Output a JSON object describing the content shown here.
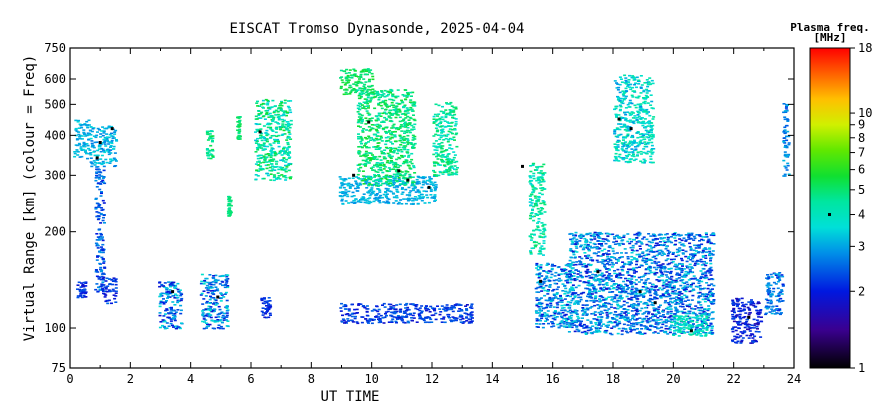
{
  "chart_data": {
    "type": "scatter",
    "title": "EISCAT Tromso Dynasonde, 2025-04-04",
    "xlabel": "UT TIME",
    "ylabel": "Virtual Range [km] (colour = Freq)",
    "xlim": [
      0,
      24
    ],
    "ylim": [
      75,
      750
    ],
    "yscale": "log",
    "x_ticks": [
      0,
      2,
      4,
      6,
      8,
      10,
      12,
      14,
      16,
      18,
      20,
      22,
      24
    ],
    "x_tick_labels": [
      "0",
      "2",
      "4",
      "6",
      "8",
      "10",
      "12",
      "14",
      "16",
      "18",
      "20",
      "22",
      "24"
    ],
    "y_ticks": [
      75,
      100,
      200,
      300,
      400,
      500,
      600,
      750
    ],
    "y_tick_labels": [
      "75",
      "100",
      "200",
      "300",
      "400",
      "500",
      "600",
      "750"
    ],
    "grid": false,
    "colorbar": {
      "title_line1": "Plasma freq.",
      "title_line2": "[MHz]",
      "scale": "log",
      "range": [
        1,
        18
      ],
      "ticks": [
        1,
        2,
        3,
        4,
        5,
        6,
        7,
        8,
        9,
        10,
        18
      ],
      "tick_labels": [
        "1",
        "2",
        "3",
        "4",
        "5",
        "6",
        "7",
        "8",
        "9",
        "10",
        "18"
      ],
      "marker_value": 4
    },
    "clusters": [
      {
        "t0": 0.1,
        "t1": 0.6,
        "r0": 340,
        "r1": 450,
        "f0": 2.8,
        "f1": 3.5
      },
      {
        "t0": 0.6,
        "t1": 1.5,
        "r0": 320,
        "r1": 430,
        "f0": 2.6,
        "f1": 3.6
      },
      {
        "t0": 0.8,
        "t1": 1.1,
        "r0": 130,
        "r1": 320,
        "f0": 1.9,
        "f1": 3.0
      },
      {
        "t0": 0.2,
        "t1": 0.5,
        "r0": 125,
        "r1": 140,
        "f0": 1.8,
        "f1": 2.4
      },
      {
        "t0": 1.0,
        "t1": 1.5,
        "r0": 120,
        "r1": 145,
        "f0": 1.8,
        "f1": 2.6
      },
      {
        "t0": 2.9,
        "t1": 3.7,
        "r0": 100,
        "r1": 140,
        "f0": 1.8,
        "f1": 3.6
      },
      {
        "t0": 4.3,
        "t1": 5.2,
        "r0": 100,
        "r1": 148,
        "f0": 1.8,
        "f1": 3.8
      },
      {
        "t0": 4.5,
        "t1": 4.7,
        "r0": 340,
        "r1": 420,
        "f0": 4.2,
        "f1": 5.5
      },
      {
        "t0": 5.2,
        "t1": 5.3,
        "r0": 225,
        "r1": 260,
        "f0": 4.5,
        "f1": 5.0
      },
      {
        "t0": 5.5,
        "t1": 5.6,
        "r0": 390,
        "r1": 460,
        "f0": 4.5,
        "f1": 5.5
      },
      {
        "t0": 6.1,
        "t1": 7.3,
        "r0": 290,
        "r1": 520,
        "f0": 3.2,
        "f1": 5.8
      },
      {
        "t0": 6.3,
        "t1": 6.6,
        "r0": 108,
        "r1": 125,
        "f0": 1.8,
        "f1": 2.4
      },
      {
        "t0": 8.9,
        "t1": 12.1,
        "r0": 245,
        "r1": 300,
        "f0": 2.8,
        "f1": 3.4
      },
      {
        "t0": 8.9,
        "t1": 10.0,
        "r0": 540,
        "r1": 650,
        "f0": 4.6,
        "f1": 5.8
      },
      {
        "t0": 9.5,
        "t1": 11.4,
        "r0": 280,
        "r1": 560,
        "f0": 4.0,
        "f1": 5.8
      },
      {
        "t0": 12.0,
        "t1": 12.8,
        "r0": 300,
        "r1": 510,
        "f0": 3.5,
        "f1": 5.4
      },
      {
        "t0": 8.9,
        "t1": 13.3,
        "r0": 104,
        "r1": 120,
        "f0": 1.8,
        "f1": 2.6
      },
      {
        "t0": 15.2,
        "t1": 15.7,
        "r0": 170,
        "r1": 330,
        "f0": 3.4,
        "f1": 5.2
      },
      {
        "t0": 15.4,
        "t1": 16.6,
        "r0": 100,
        "r1": 160,
        "f0": 1.9,
        "f1": 3.6
      },
      {
        "t0": 16.5,
        "t1": 21.3,
        "r0": 96,
        "r1": 200,
        "f0": 1.8,
        "f1": 3.6
      },
      {
        "t0": 18.0,
        "t1": 19.3,
        "r0": 330,
        "r1": 620,
        "f0": 2.8,
        "f1": 4.6
      },
      {
        "t0": 19.9,
        "t1": 21.1,
        "r0": 95,
        "r1": 110,
        "f0": 3.4,
        "f1": 4.6
      },
      {
        "t0": 21.9,
        "t1": 22.9,
        "r0": 90,
        "r1": 125,
        "f0": 1.6,
        "f1": 2.4
      },
      {
        "t0": 23.0,
        "t1": 23.6,
        "r0": 110,
        "r1": 150,
        "f0": 2.0,
        "f1": 3.2
      },
      {
        "t0": 23.6,
        "t1": 23.8,
        "r0": 300,
        "r1": 510,
        "f0": 2.2,
        "f1": 3.2
      }
    ],
    "black_points": [
      {
        "t": 0.9,
        "r": 340
      },
      {
        "t": 1.0,
        "r": 380
      },
      {
        "t": 1.4,
        "r": 420
      },
      {
        "t": 3.4,
        "r": 130
      },
      {
        "t": 4.9,
        "r": 125
      },
      {
        "t": 6.3,
        "r": 410
      },
      {
        "t": 9.4,
        "r": 300
      },
      {
        "t": 9.9,
        "r": 440
      },
      {
        "t": 10.9,
        "r": 310
      },
      {
        "t": 11.2,
        "r": 290
      },
      {
        "t": 11.9,
        "r": 275
      },
      {
        "t": 15.0,
        "r": 320
      },
      {
        "t": 15.6,
        "r": 140
      },
      {
        "t": 17.5,
        "r": 150
      },
      {
        "t": 18.2,
        "r": 450
      },
      {
        "t": 18.6,
        "r": 420
      },
      {
        "t": 18.9,
        "r": 130
      },
      {
        "t": 19.4,
        "r": 120
      },
      {
        "t": 20.6,
        "r": 98
      },
      {
        "t": 22.5,
        "r": 108
      }
    ]
  }
}
